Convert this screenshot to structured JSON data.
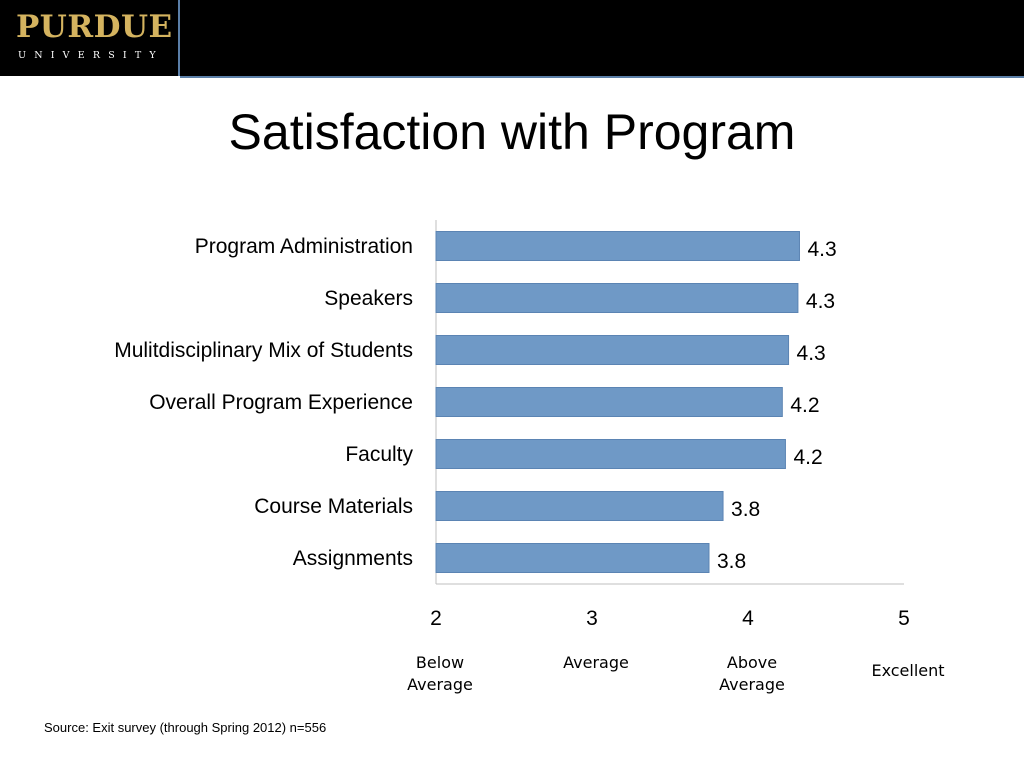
{
  "header": {
    "logo_word": "PURDUE",
    "logo_sub": "UNIVERSITY"
  },
  "title": "Satisfaction with Program",
  "colors": {
    "bar": "#6f99c6",
    "bar_edge": "#5b84b3",
    "header_bg": "#000000",
    "logo_gold": "#d4b35f",
    "accent_line": "#5b7fa8"
  },
  "chart_data": {
    "type": "bar",
    "orientation": "horizontal",
    "categories": [
      "Program Administration",
      "Speakers",
      "Mulitdisciplinary Mix of Students",
      "Overall Program Experience",
      "Faculty",
      "Course Materials",
      "Assignments"
    ],
    "values": [
      4.33,
      4.32,
      4.26,
      4.22,
      4.24,
      3.84,
      3.75
    ],
    "data_labels": [
      "4.3",
      "4.3",
      "4.3",
      "4.2",
      "4.2",
      "3.8",
      "3.8"
    ],
    "xlim": [
      2,
      5
    ],
    "xticks": [
      "2",
      "3",
      "4",
      "5"
    ],
    "scale_labels": [
      {
        "value": 2,
        "text": "Below\nAverage"
      },
      {
        "value": 3,
        "text": "Average"
      },
      {
        "value": 4,
        "text": "Above\nAverage"
      },
      {
        "value": 5,
        "text": "Excellent"
      }
    ],
    "grid": false,
    "legend": "none"
  },
  "source": "Source: Exit survey (through Spring 2012) n=556"
}
